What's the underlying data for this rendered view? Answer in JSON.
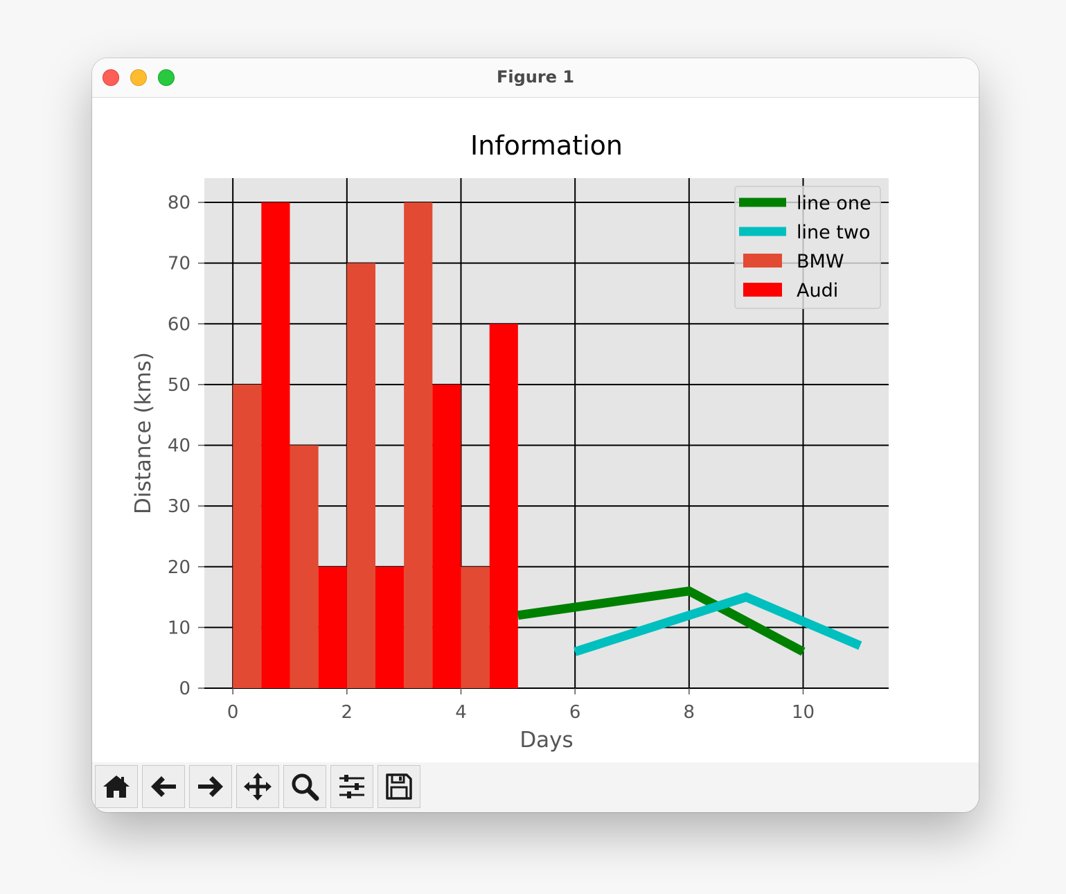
{
  "window": {
    "title": "Figure 1"
  },
  "toolbar": {
    "buttons": [
      {
        "name": "home-button",
        "icon": "home-icon"
      },
      {
        "name": "back-button",
        "icon": "arrow-left-icon"
      },
      {
        "name": "forward-button",
        "icon": "arrow-right-icon"
      },
      {
        "name": "pan-button",
        "icon": "move-icon"
      },
      {
        "name": "zoom-button",
        "icon": "magnifier-icon"
      },
      {
        "name": "configure-subplots-button",
        "icon": "sliders-icon"
      },
      {
        "name": "save-button",
        "icon": "floppy-disk-icon"
      }
    ]
  },
  "chart_data": {
    "type": "bar",
    "title": "Information",
    "xlabel": "Days",
    "ylabel": "Distance (kms)",
    "xlim": [
      -0.5,
      11.5
    ],
    "ylim": [
      0,
      84
    ],
    "xticks": [
      0,
      2,
      4,
      6,
      8,
      10
    ],
    "yticks": [
      0,
      10,
      20,
      30,
      40,
      50,
      60,
      70,
      80
    ],
    "grid": true,
    "legend_position": "top-right",
    "bar_width": 0.5,
    "bars": [
      {
        "name": "BMW",
        "color": "#e24a33",
        "x": [
          0,
          1,
          2,
          3,
          4
        ],
        "values": [
          50,
          40,
          70,
          80,
          20
        ]
      },
      {
        "name": "Audi",
        "color": "#ff0000",
        "x": [
          0.5,
          1.5,
          2.5,
          3.5,
          4.5
        ],
        "values": [
          80,
          20,
          20,
          50,
          60
        ]
      }
    ],
    "lines": [
      {
        "name": "line one",
        "color": "#008000",
        "x": [
          5,
          8,
          10
        ],
        "y": [
          12,
          16,
          6
        ]
      },
      {
        "name": "line two",
        "color": "#00bfbf",
        "x": [
          6,
          9,
          11
        ],
        "y": [
          6,
          15,
          7
        ]
      }
    ]
  }
}
